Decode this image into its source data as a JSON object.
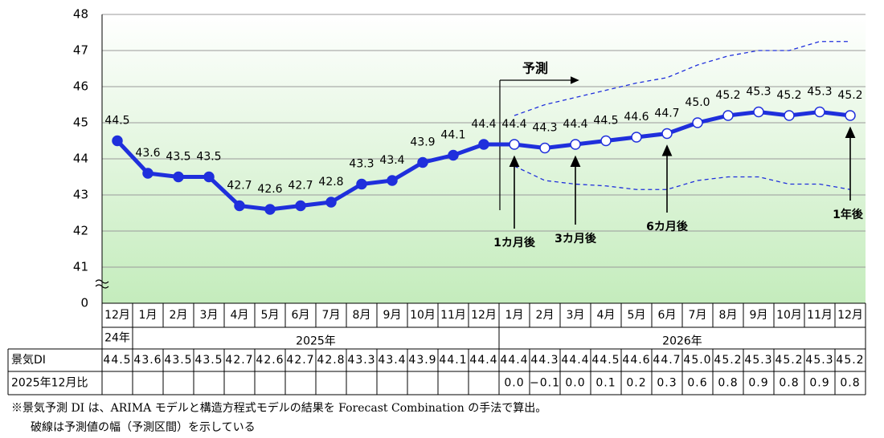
{
  "chart_data": {
    "type": "line",
    "categories": [
      "12月",
      "1月",
      "2月",
      "3月",
      "4月",
      "5月",
      "6月",
      "7月",
      "8月",
      "9月",
      "10月",
      "11月",
      "12月",
      "1月",
      "2月",
      "3月",
      "4月",
      "5月",
      "6月",
      "7月",
      "8月",
      "9月",
      "10月",
      "11月",
      "12月"
    ],
    "years": [
      {
        "label": "24年",
        "from": 0,
        "to": 0
      },
      {
        "label": "2025年",
        "from": 1,
        "to": 12
      },
      {
        "label": "2026年",
        "from": 13,
        "to": 24
      }
    ],
    "ylim": [
      40,
      48
    ],
    "yticks": [
      41,
      42,
      43,
      44,
      45,
      46,
      47,
      48
    ],
    "ybreak_label": "0",
    "grid": true,
    "series": [
      {
        "color": "#1f2fdc",
        "width": 5,
        "values": [
          44.5,
          43.6,
          43.5,
          43.5,
          42.7,
          42.6,
          42.7,
          42.8,
          43.3,
          43.4,
          43.9,
          44.1,
          44.4,
          44.4,
          44.3,
          44.4,
          44.5,
          44.6,
          44.7,
          45.0,
          45.2,
          45.3,
          45.2,
          45.3,
          45.2
        ],
        "value_labels": [
          "44.5",
          "43.6",
          "43.5",
          "43.5",
          "42.7",
          "42.6",
          "42.7",
          "42.8",
          "43.3",
          "43.4",
          "43.9",
          "44.1",
          "44.4",
          "44.4",
          "44.3",
          "44.4",
          "44.5",
          "44.6",
          "44.7",
          "45.0",
          "45.2",
          "45.3",
          "45.2",
          "45.3",
          "45.2"
        ],
        "markers": [
          "filled",
          "filled",
          "filled",
          "filled",
          "filled",
          "filled",
          "filled",
          "filled",
          "filled",
          "filled",
          "filled",
          "filled",
          "filled",
          "open",
          "open",
          "open",
          "open",
          "open",
          "open",
          "open",
          "open",
          "open",
          "open",
          "open",
          "open"
        ]
      },
      {
        "color": "#1f2fdc",
        "width": 1.3,
        "dashed": true,
        "values": [
          null,
          null,
          null,
          null,
          null,
          null,
          null,
          null,
          null,
          null,
          null,
          null,
          null,
          45.2,
          45.5,
          45.7,
          45.9,
          46.1,
          46.25,
          46.6,
          46.85,
          47.0,
          47.0,
          47.25,
          47.25
        ]
      },
      {
        "color": "#1f2fdc",
        "width": 1.3,
        "dashed": true,
        "values": [
          null,
          null,
          null,
          null,
          null,
          null,
          null,
          null,
          null,
          null,
          null,
          null,
          null,
          43.8,
          43.4,
          43.3,
          43.25,
          43.15,
          43.15,
          43.4,
          43.5,
          43.5,
          43.3,
          43.3,
          43.15
        ]
      }
    ],
    "forecast_label": "予測",
    "annotations": [
      {
        "text": "1カ月後",
        "category_index": 13
      },
      {
        "text": "3カ月後",
        "category_index": 15
      },
      {
        "text": "6カ月後",
        "category_index": 18
      },
      {
        "text": "1年後",
        "category_index": 24
      }
    ],
    "table": {
      "di_label": "景気DI",
      "change_label": "2025年12月比",
      "change_values": [
        null,
        null,
        null,
        null,
        null,
        null,
        null,
        null,
        null,
        null,
        null,
        null,
        null,
        "0.0",
        "−0.1",
        "0.0",
        "0.1",
        "0.2",
        "0.3",
        "0.6",
        "0.8",
        "0.9",
        "0.8",
        "0.9",
        "0.8"
      ]
    },
    "notes": [
      "※景気予測 DI は、ARIMA モデルと構造方程式モデルの結果を Forecast Combination の手法で算出。",
      "破線は予測値の幅（予測区間）を示している"
    ]
  }
}
